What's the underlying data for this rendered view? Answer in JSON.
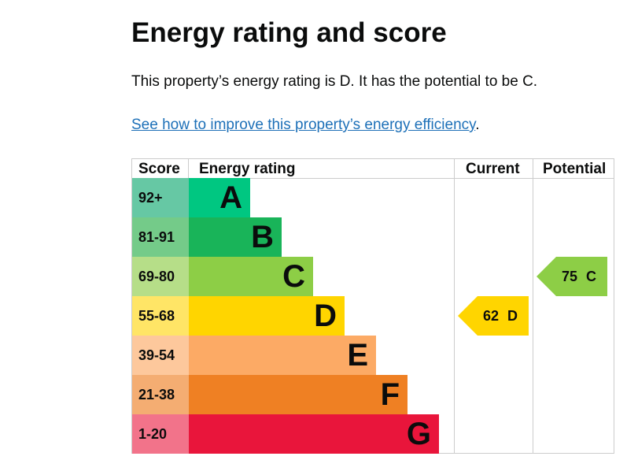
{
  "title": "Energy rating and score",
  "summary": "This property’s energy rating is D. It has the potential to be C.",
  "link": "See how to improve this property’s energy efficiency",
  "link_suffix": ".",
  "table": {
    "headers": [
      "Score",
      "Energy rating",
      "Current",
      "Potential"
    ],
    "rows": [
      {
        "score": "92+",
        "band": "A",
        "color": "#00c781",
        "score_color": "#66c8a4"
      },
      {
        "score": "81-91",
        "band": "B",
        "color": "#19b459",
        "score_color": "#74cb89"
      },
      {
        "score": "69-80",
        "band": "C",
        "color": "#8dce46",
        "score_color": "#b6de88"
      },
      {
        "score": "55-68",
        "band": "D",
        "color": "#ffd500",
        "score_color": "#ffe566"
      },
      {
        "score": "39-54",
        "band": "E",
        "color": "#fcaa65",
        "score_color": "#fdc89c"
      },
      {
        "score": "21-38",
        "band": "F",
        "color": "#ef8023",
        "score_color": "#f4ad72"
      },
      {
        "score": "1-20",
        "band": "G",
        "color": "#e9153b",
        "score_color": "#f2738a"
      }
    ],
    "current": {
      "label": "62 D",
      "score": 62,
      "band": "D",
      "color": "#ffd500"
    },
    "potential": {
      "label": "75 C",
      "score": 75,
      "band": "C",
      "color": "#8dce46"
    }
  }
}
